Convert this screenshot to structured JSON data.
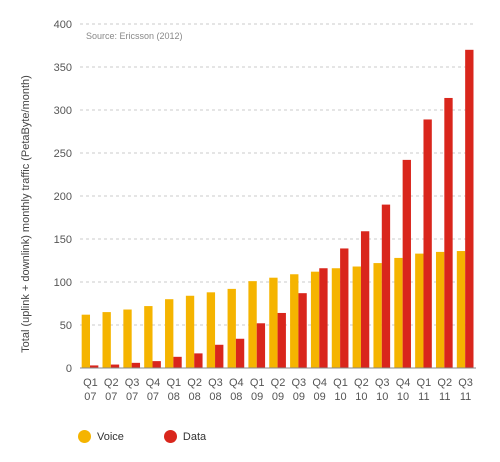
{
  "colors": {
    "voice": "#f5b400",
    "data": "#d9261c",
    "grid": "#bbbbbb",
    "axis": "#888888"
  },
  "chart_data": {
    "type": "bar",
    "title": "",
    "source_note": "Source: Ericsson (2012)",
    "ylabel": "Total (uplink + downlink) monthly traffic (PetaByte/month)",
    "xlabel": "",
    "ylim": [
      0,
      400
    ],
    "yticks": [
      0,
      50,
      100,
      150,
      200,
      250,
      300,
      350,
      400
    ],
    "grid": true,
    "legend_position": "bottom-left",
    "categories": [
      [
        "Q1",
        "07"
      ],
      [
        "Q2",
        "07"
      ],
      [
        "Q3",
        "07"
      ],
      [
        "Q4",
        "07"
      ],
      [
        "Q1",
        "08"
      ],
      [
        "Q2",
        "08"
      ],
      [
        "Q3",
        "08"
      ],
      [
        "Q4",
        "08"
      ],
      [
        "Q1",
        "09"
      ],
      [
        "Q2",
        "09"
      ],
      [
        "Q3",
        "09"
      ],
      [
        "Q4",
        "09"
      ],
      [
        "Q1",
        "10"
      ],
      [
        "Q2",
        "10"
      ],
      [
        "Q3",
        "10"
      ],
      [
        "Q4",
        "10"
      ],
      [
        "Q1",
        "11"
      ],
      [
        "Q2",
        "11"
      ],
      [
        "Q3",
        "11"
      ]
    ],
    "series": [
      {
        "name": "Voice",
        "color_key": "voice",
        "values": [
          62,
          65,
          68,
          72,
          80,
          84,
          88,
          92,
          101,
          105,
          109,
          112,
          116,
          118,
          122,
          128,
          133,
          135,
          136
        ]
      },
      {
        "name": "Data",
        "color_key": "data",
        "values": [
          3,
          4,
          6,
          8,
          13,
          17,
          27,
          34,
          52,
          64,
          87,
          116,
          139,
          159,
          190,
          242,
          289,
          314,
          370
        ]
      }
    ]
  }
}
